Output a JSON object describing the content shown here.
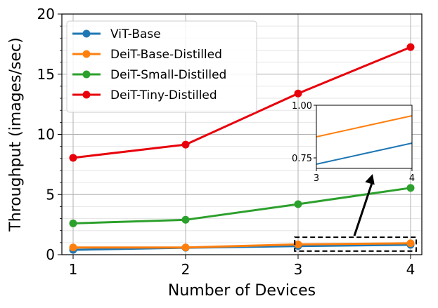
{
  "chart_data": {
    "type": "line",
    "xlabel": "Number of Devices",
    "ylabel": "Throughput (images/sec)",
    "x": [
      1,
      2,
      3,
      4
    ],
    "xlim": [
      0.9,
      4.1
    ],
    "ylim": [
      0,
      20
    ],
    "xticks": [
      "1",
      "2",
      "3",
      "4"
    ],
    "yticks": [
      "0",
      "5",
      "10",
      "15",
      "20"
    ],
    "grid": true,
    "legend_position": "top-left",
    "series": [
      {
        "name": "ViT-Base",
        "color": "#1f77b4",
        "values": [
          0.4,
          0.58,
          0.72,
          0.82
        ]
      },
      {
        "name": "DeiT-Base-Distilled",
        "color": "#ff7f0e",
        "values": [
          0.6,
          0.6,
          0.85,
          0.95
        ]
      },
      {
        "name": "DeiT-Small-Distilled",
        "color": "#2ca02c",
        "values": [
          2.6,
          2.9,
          4.2,
          5.55
        ]
      },
      {
        "name": "DeiT-Tiny-Distilled",
        "color": "#e8000b",
        "values": [
          8.05,
          9.15,
          13.4,
          17.25
        ]
      }
    ],
    "inset": {
      "xlim": [
        3,
        4
      ],
      "ylim": [
        0.7,
        1.0
      ],
      "xticks": [
        "3",
        "4"
      ],
      "yticks": [
        "0.75",
        "1.00"
      ]
    }
  }
}
